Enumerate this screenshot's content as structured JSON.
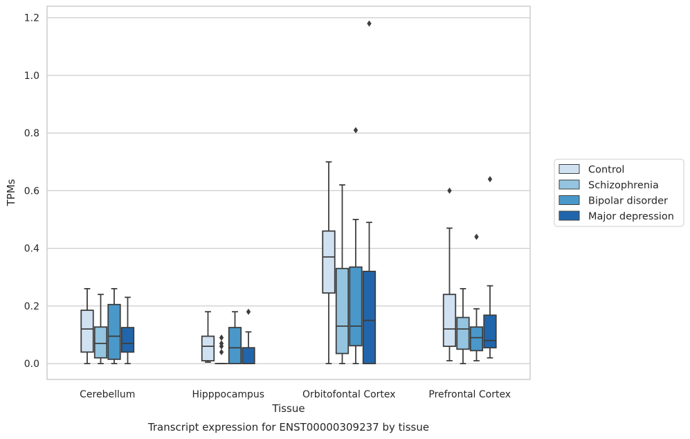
{
  "chart_data": {
    "type": "boxplot",
    "title": "",
    "caption": "Transcript expression for ENST00000309237 by tissue",
    "xlabel": "Tissue",
    "ylabel": "TPMs",
    "ylim": [
      -0.055,
      1.24
    ],
    "yticks": [
      0.0,
      0.2,
      0.4,
      0.6,
      0.8,
      1.0,
      1.2
    ],
    "ytick_labels": [
      "0.0",
      "0.2",
      "0.4",
      "0.6",
      "0.8",
      "1.0",
      "1.2"
    ],
    "grid": "horizontal",
    "legend_position": "right",
    "categories": [
      "Cerebellum",
      "Hipppocampus",
      "Orbitofontal Cortex",
      "Prefrontal Cortex"
    ],
    "series": [
      {
        "name": "Control",
        "color": "#d0e1f2",
        "boxes": [
          {
            "whislo": 0.0,
            "q1": 0.04,
            "med": 0.12,
            "q3": 0.185,
            "whishi": 0.26,
            "fliers": []
          },
          {
            "whislo": 0.005,
            "q1": 0.01,
            "med": 0.06,
            "q3": 0.095,
            "whishi": 0.18,
            "fliers": []
          },
          {
            "whislo": 0.0,
            "q1": 0.245,
            "med": 0.37,
            "q3": 0.46,
            "whishi": 0.7,
            "fliers": []
          },
          {
            "whislo": 0.01,
            "q1": 0.06,
            "med": 0.12,
            "q3": 0.24,
            "whishi": 0.47,
            "fliers": [
              0.6
            ]
          }
        ]
      },
      {
        "name": "Schizophrenia",
        "color": "#94c4df",
        "boxes": [
          {
            "whislo": 0.0,
            "q1": 0.02,
            "med": 0.07,
            "q3": 0.127,
            "whishi": 0.24,
            "fliers": []
          },
          {
            "whislo": 0.0,
            "q1": 0.0,
            "med": 0.0,
            "q3": 0.0,
            "whishi": 0.0,
            "fliers": [
              0.04,
              0.06,
              0.09,
              0.07
            ]
          },
          {
            "whislo": 0.0,
            "q1": 0.035,
            "med": 0.13,
            "q3": 0.33,
            "whishi": 0.62,
            "fliers": []
          },
          {
            "whislo": 0.0,
            "q1": 0.05,
            "med": 0.12,
            "q3": 0.16,
            "whishi": 0.26,
            "fliers": []
          }
        ]
      },
      {
        "name": "Bipolar disorder",
        "color": "#4a98c9",
        "boxes": [
          {
            "whislo": 0.0,
            "q1": 0.015,
            "med": 0.095,
            "q3": 0.205,
            "whishi": 0.26,
            "fliers": []
          },
          {
            "whislo": 0.0,
            "q1": 0.0,
            "med": 0.055,
            "q3": 0.125,
            "whishi": 0.18,
            "fliers": []
          },
          {
            "whislo": 0.0,
            "q1": 0.062,
            "med": 0.13,
            "q3": 0.335,
            "whishi": 0.5,
            "fliers": [
              0.81
            ]
          },
          {
            "whislo": 0.01,
            "q1": 0.045,
            "med": 0.09,
            "q3": 0.127,
            "whishi": 0.19,
            "fliers": [
              0.44
            ]
          }
        ]
      },
      {
        "name": "Major depression",
        "color": "#2166ac",
        "boxes": [
          {
            "whislo": 0.0,
            "q1": 0.04,
            "med": 0.07,
            "q3": 0.125,
            "whishi": 0.23,
            "fliers": []
          },
          {
            "whislo": 0.0,
            "q1": 0.0,
            "med": 0.0,
            "q3": 0.055,
            "whishi": 0.11,
            "fliers": [
              0.18
            ]
          },
          {
            "whislo": 0.0,
            "q1": 0.0,
            "med": 0.15,
            "q3": 0.32,
            "whishi": 0.49,
            "fliers": [
              1.18
            ]
          },
          {
            "whislo": 0.02,
            "q1": 0.055,
            "med": 0.08,
            "q3": 0.168,
            "whishi": 0.27,
            "fliers": [
              0.64
            ]
          }
        ]
      }
    ]
  },
  "colors": {
    "grid": "#cccccc",
    "axis_frame": "#cccccc",
    "line": "#3d3d3d",
    "text": "#262626"
  }
}
